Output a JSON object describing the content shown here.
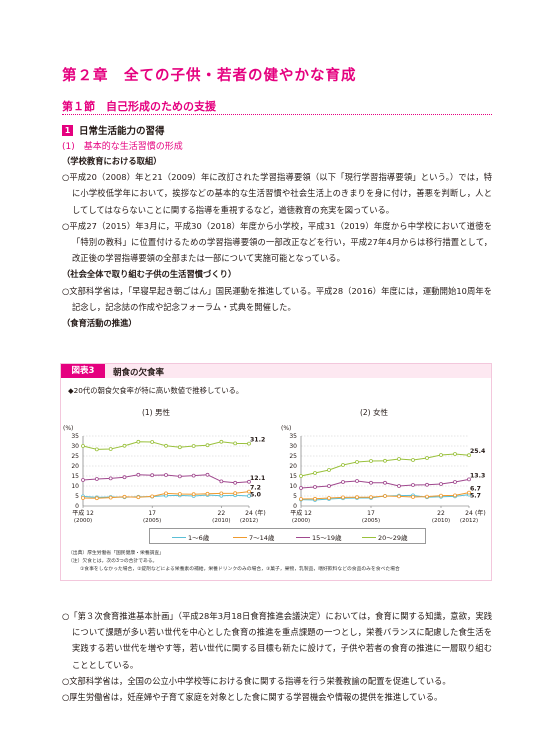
{
  "chapter": "第２章　全ての子供・若者の健やかな育成",
  "section": "第１節　自己形成のための支援",
  "subsection": {
    "num": "1",
    "title": "日常生活能力の習得"
  },
  "subsubsection": "(1)　基本的な生活習慣の形成",
  "block1": {
    "heading": "（学校教育における取組）",
    "p1": "○平成20（2008）年と21（2009）年に改訂された学習指導要領（以下「現行学習指導要領」という。）では，特に小学校低学年において，挨拶などの基本的な生活習慣や社会生活上のきまりを身に付け，善悪を判断し，人としてしてはならないことに関する指導を重視するなど，道徳教育の充実を図っている。",
    "p2": "○平成27（2015）年3月に，平成30（2018）年度から小学校，平成31（2019）年度から中学校において道徳を「特別の教科」に位置付けるための学習指導要領の一部改正などを行い，平成27年4月からは移行措置として，改正後の学習指導要領の全部または一部について実施可能となっている。",
    "heading2": "（社会全体で取り組む子供の生活習慣づくり）",
    "p3": "○文部科学省は，「早寝早起き朝ごはん」国民運動を推進している。平成28（2016）年度には，運動開始10周年を記念し，記念誌の作成や記念フォーラム・式典を開催した。",
    "heading3": "（食育活動の推進）"
  },
  "figure": {
    "label": "図表3",
    "title": "朝食の欠食率",
    "note": "◆20代の朝食欠食率が特に高い数値で推移している。",
    "legend": [
      "1～6歳",
      "7～14歳",
      "15～19歳",
      "20～29歳"
    ],
    "source1": "（出典）厚生労働省「国民健康・栄養調査」",
    "source2": "（注）欠食とは，次の3つの合計である。",
    "source3": "①食事をしなかった場合，②錠剤などによる栄養素の補給，栄養ドリンクのみの場合，③菓子，果物，乳製品，嗜好飲料などの食品のみを食べた場合"
  },
  "chart_data": [
    {
      "type": "line",
      "title": "(1) 男性",
      "ylabel": "(%)",
      "xlabel": "(年)",
      "ylim": [
        0,
        35
      ],
      "yticks": [
        0,
        5,
        10,
        15,
        20,
        25,
        30,
        35
      ],
      "x": [
        2000,
        2001,
        2002,
        2003,
        2004,
        2005,
        2006,
        2007,
        2008,
        2009,
        2010,
        2011,
        2012
      ],
      "xtick_labels": [
        "平成 12\n(2000)",
        "17\n(2005)",
        "22\n(2010)",
        "24\n(2012)"
      ],
      "series": [
        {
          "name": "1～6歳",
          "color": "#5bbfd6",
          "values": [
            4.8,
            4.3,
            4.5,
            4.4,
            4.6,
            4.7,
            5.2,
            5.3,
            5.0,
            5.5,
            5.1,
            5.4,
            5.0
          ]
        },
        {
          "name": "7～14歳",
          "color": "#ef9a2f",
          "values": [
            4.0,
            3.9,
            4.2,
            4.6,
            4.4,
            4.8,
            6.3,
            6.0,
            5.9,
            6.1,
            6.3,
            6.4,
            7.2
          ]
        },
        {
          "name": "15～19歳",
          "color": "#a0488e",
          "values": [
            13.0,
            13.5,
            13.8,
            14.4,
            15.6,
            15.4,
            15.5,
            14.8,
            15.2,
            15.6,
            12.3,
            11.6,
            12.1
          ]
        },
        {
          "name": "20～29歳",
          "color": "#9ac13c",
          "values": [
            30.0,
            28.3,
            28.5,
            30.1,
            32.1,
            32.0,
            30.1,
            29.4,
            30.0,
            30.4,
            32.1,
            31.3,
            31.2
          ]
        }
      ],
      "end_labels": [
        "31.2",
        "12.1",
        "7.2",
        "5.0"
      ]
    },
    {
      "type": "line",
      "title": "(2) 女性",
      "ylabel": "(%)",
      "xlabel": "(年)",
      "ylim": [
        0,
        35
      ],
      "yticks": [
        0,
        5,
        10,
        15,
        20,
        25,
        30,
        35
      ],
      "x": [
        2000,
        2001,
        2002,
        2003,
        2004,
        2005,
        2006,
        2007,
        2008,
        2009,
        2010,
        2011,
        2012
      ],
      "xtick_labels": [
        "平成 12\n(2000)",
        "17\n(2005)",
        "22\n(2010)",
        "24\n(2012)"
      ],
      "series": [
        {
          "name": "1～6歳",
          "color": "#5bbfd6",
          "values": [
            3.2,
            3.0,
            3.5,
            3.9,
            4.0,
            4.0,
            5.0,
            5.2,
            5.3,
            4.4,
            4.6,
            4.8,
            5.7
          ]
        },
        {
          "name": "7～14歳",
          "color": "#ef9a2f",
          "values": [
            3.5,
            3.6,
            4.0,
            4.3,
            4.4,
            4.4,
            5.0,
            4.8,
            4.5,
            4.7,
            5.2,
            5.3,
            6.7
          ]
        },
        {
          "name": "15～19歳",
          "color": "#a0488e",
          "values": [
            9.0,
            9.5,
            10.0,
            12.0,
            12.5,
            11.6,
            11.6,
            10.0,
            10.5,
            10.6,
            11.0,
            12.0,
            13.3
          ]
        },
        {
          "name": "20～29歳",
          "color": "#9ac13c",
          "values": [
            15.0,
            16.5,
            18.0,
            20.5,
            22.0,
            22.5,
            22.6,
            23.5,
            23.0,
            24.0,
            25.5,
            26.0,
            25.4
          ]
        }
      ],
      "end_labels": [
        "25.4",
        "13.3",
        "6.7",
        "5.7"
      ]
    }
  ],
  "block2": {
    "p1": "○「第３次食育推進基本計画」（平成28年3月18日食育推進会議決定）においては，食育に関する知識，意欲，実践について課題が多い若い世代を中心とした食育の推進を重点課題の一つとし，栄養バランスに配慮した食生活を実践する若い世代を増やす等，若い世代に関する目標も新たに設けて，子供や若者の食育の推進に一層取り組むこととしている。",
    "p2": "○文部科学省は，全国の公立小中学校等における食に関する指導を行う栄養教諭の配置を促進している。",
    "p3": "○厚生労働省は，妊産婦や子育て家庭を対象とした食に関する学習機会や情報の提供を推進している。"
  }
}
